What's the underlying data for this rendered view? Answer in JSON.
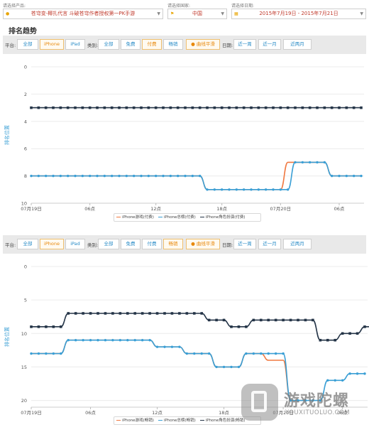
{
  "filters": {
    "product": {
      "label": "请选择产品:",
      "value": "苍穹变-椰扎代言 斗破苍穹作者授权第一PK手游"
    },
    "country": {
      "label": "请选择国家:",
      "value": "中国"
    },
    "date": {
      "label": "请选择日期:",
      "value": "2015年7月19日 - 2015年7月21日"
    }
  },
  "section_title": "排名趋势",
  "toolbar": {
    "platform_label": "平台:",
    "platforms": [
      "全部",
      "iPhone",
      "iPad"
    ],
    "category_label": "类别:",
    "categories": [
      "全部",
      "免费",
      "付费",
      "畅销"
    ],
    "smooth_label": "曲线平滑",
    "date_label": "日期:",
    "date_ranges": [
      "近一周",
      "近一月",
      "近两月"
    ]
  },
  "colors": {
    "game_series": "#f07840",
    "overall_series": "#3a9fd5",
    "role_series": "#243447",
    "active": "#e8890c",
    "link": "#2a8cc7"
  },
  "chart_data": [
    {
      "type": "line",
      "title": "",
      "ylabel": "排名位置",
      "ylim": [
        0,
        10
      ],
      "y_reversed": true,
      "yticks": [
        0,
        2,
        4,
        6,
        8,
        10
      ],
      "x_tick_labels": [
        "07月19日",
        "06点",
        "12点",
        "18点",
        "07月20日",
        "06点"
      ],
      "legend_position": "bottom",
      "active_platform": "iPhone",
      "active_category": "付费",
      "series": [
        {
          "name": "iPhone游戏(付费)",
          "points": [
            [
              0,
              8
            ],
            [
              1,
              8
            ],
            [
              2,
              8
            ],
            [
              3,
              8
            ],
            [
              4,
              8
            ],
            [
              5,
              8
            ],
            [
              6,
              8
            ],
            [
              7,
              8
            ],
            [
              8,
              8
            ],
            [
              9,
              8
            ],
            [
              10,
              8
            ],
            [
              11,
              8
            ],
            [
              12,
              8
            ],
            [
              13,
              8
            ],
            [
              14,
              8
            ],
            [
              15,
              8
            ],
            [
              16,
              8
            ],
            [
              17,
              8
            ],
            [
              18,
              8
            ],
            [
              19,
              8
            ],
            [
              20,
              8
            ],
            [
              21,
              8
            ],
            [
              22,
              8
            ],
            [
              23,
              8
            ],
            [
              24,
              9
            ],
            [
              25,
              9
            ],
            [
              26,
              9
            ],
            [
              27,
              9
            ],
            [
              28,
              9
            ],
            [
              29,
              9
            ],
            [
              30,
              9
            ],
            [
              31,
              9
            ],
            [
              32,
              9
            ],
            [
              33,
              9
            ],
            [
              34,
              9
            ],
            [
              35,
              7
            ],
            [
              36,
              7
            ],
            [
              37,
              7
            ],
            [
              38,
              7
            ],
            [
              39,
              7
            ],
            [
              40,
              7
            ],
            [
              41,
              8
            ],
            [
              42,
              8
            ],
            [
              43,
              8
            ],
            [
              44,
              8
            ],
            [
              45,
              8
            ]
          ]
        },
        {
          "name": "iPhone总榜(付费)",
          "points": [
            [
              0,
              8
            ],
            [
              1,
              8
            ],
            [
              2,
              8
            ],
            [
              3,
              8
            ],
            [
              4,
              8
            ],
            [
              5,
              8
            ],
            [
              6,
              8
            ],
            [
              7,
              8
            ],
            [
              8,
              8
            ],
            [
              9,
              8
            ],
            [
              10,
              8
            ],
            [
              11,
              8
            ],
            [
              12,
              8
            ],
            [
              13,
              8
            ],
            [
              14,
              8
            ],
            [
              15,
              8
            ],
            [
              16,
              8
            ],
            [
              17,
              8
            ],
            [
              18,
              8
            ],
            [
              19,
              8
            ],
            [
              20,
              8
            ],
            [
              21,
              8
            ],
            [
              22,
              8
            ],
            [
              23,
              8
            ],
            [
              24,
              9
            ],
            [
              25,
              9
            ],
            [
              26,
              9
            ],
            [
              27,
              9
            ],
            [
              28,
              9
            ],
            [
              29,
              9
            ],
            [
              30,
              9
            ],
            [
              31,
              9
            ],
            [
              32,
              9
            ],
            [
              33,
              9
            ],
            [
              34,
              9
            ],
            [
              35,
              9
            ],
            [
              36,
              7
            ],
            [
              37,
              7
            ],
            [
              38,
              7
            ],
            [
              39,
              7
            ],
            [
              40,
              7
            ],
            [
              41,
              8
            ],
            [
              42,
              8
            ],
            [
              43,
              8
            ],
            [
              44,
              8
            ],
            [
              45,
              8
            ]
          ]
        },
        {
          "name": "iPhone角色扮演(付费)",
          "points": [
            [
              0,
              3
            ],
            [
              1,
              3
            ],
            [
              2,
              3
            ],
            [
              3,
              3
            ],
            [
              4,
              3
            ],
            [
              5,
              3
            ],
            [
              6,
              3
            ],
            [
              7,
              3
            ],
            [
              8,
              3
            ],
            [
              9,
              3
            ],
            [
              10,
              3
            ],
            [
              11,
              3
            ],
            [
              12,
              3
            ],
            [
              13,
              3
            ],
            [
              14,
              3
            ],
            [
              15,
              3
            ],
            [
              16,
              3
            ],
            [
              17,
              3
            ],
            [
              18,
              3
            ],
            [
              19,
              3
            ],
            [
              20,
              3
            ],
            [
              21,
              3
            ],
            [
              22,
              3
            ],
            [
              23,
              3
            ],
            [
              24,
              3
            ],
            [
              25,
              3
            ],
            [
              26,
              3
            ],
            [
              27,
              3
            ],
            [
              28,
              3
            ],
            [
              29,
              3
            ],
            [
              30,
              3
            ],
            [
              31,
              3
            ],
            [
              32,
              3
            ],
            [
              33,
              3
            ],
            [
              34,
              3
            ],
            [
              35,
              3
            ],
            [
              36,
              3
            ],
            [
              37,
              3
            ],
            [
              38,
              3
            ],
            [
              39,
              3
            ],
            [
              40,
              3
            ],
            [
              41,
              3
            ],
            [
              42,
              3
            ],
            [
              43,
              3
            ],
            [
              44,
              3
            ],
            [
              45,
              3
            ]
          ]
        }
      ]
    },
    {
      "type": "line",
      "title": "",
      "ylabel": "排名位置",
      "ylim": [
        0,
        21
      ],
      "y_reversed": true,
      "yticks": [
        0,
        5,
        10,
        15,
        20
      ],
      "x_tick_labels": [
        "07月19日",
        "06点",
        "12点",
        "18点",
        "07月20日",
        "06点"
      ],
      "legend_position": "bottom",
      "active_platform": "iPhone",
      "active_category": "畅销",
      "series": [
        {
          "name": "iPhone游戏(畅销)",
          "points": [
            [
              0,
              13
            ],
            [
              1,
              13
            ],
            [
              2,
              13
            ],
            [
              3,
              13
            ],
            [
              4,
              13
            ],
            [
              5,
              11
            ],
            [
              6,
              11
            ],
            [
              7,
              11
            ],
            [
              8,
              11
            ],
            [
              9,
              11
            ],
            [
              10,
              11
            ],
            [
              11,
              11
            ],
            [
              12,
              11
            ],
            [
              13,
              11
            ],
            [
              14,
              11
            ],
            [
              15,
              11
            ],
            [
              16,
              11
            ],
            [
              17,
              12
            ],
            [
              18,
              12
            ],
            [
              19,
              12
            ],
            [
              20,
              12
            ],
            [
              21,
              13
            ],
            [
              22,
              13
            ],
            [
              23,
              13
            ],
            [
              24,
              13
            ],
            [
              25,
              15
            ],
            [
              26,
              15
            ],
            [
              27,
              15
            ],
            [
              28,
              15
            ],
            [
              29,
              13
            ],
            [
              30,
              13
            ],
            [
              31,
              13
            ],
            [
              32,
              14
            ],
            [
              33,
              14
            ],
            [
              34,
              14
            ],
            [
              35,
              20
            ],
            [
              36,
              20
            ],
            [
              37,
              20
            ]
          ]
        },
        {
          "name": "iPhone总榜(畅销)",
          "points": [
            [
              0,
              13
            ],
            [
              1,
              13
            ],
            [
              2,
              13
            ],
            [
              3,
              13
            ],
            [
              4,
              13
            ],
            [
              5,
              11
            ],
            [
              6,
              11
            ],
            [
              7,
              11
            ],
            [
              8,
              11
            ],
            [
              9,
              11
            ],
            [
              10,
              11
            ],
            [
              11,
              11
            ],
            [
              12,
              11
            ],
            [
              13,
              11
            ],
            [
              14,
              11
            ],
            [
              15,
              11
            ],
            [
              16,
              11
            ],
            [
              17,
              12
            ],
            [
              18,
              12
            ],
            [
              19,
              12
            ],
            [
              20,
              12
            ],
            [
              21,
              13
            ],
            [
              22,
              13
            ],
            [
              23,
              13
            ],
            [
              24,
              13
            ],
            [
              25,
              15
            ],
            [
              26,
              15
            ],
            [
              27,
              15
            ],
            [
              28,
              15
            ],
            [
              29,
              13
            ],
            [
              30,
              13
            ],
            [
              31,
              13
            ],
            [
              32,
              13
            ],
            [
              33,
              13
            ],
            [
              34,
              13
            ],
            [
              35,
              20
            ],
            [
              36,
              20
            ],
            [
              37,
              20
            ],
            [
              38,
              20
            ],
            [
              39,
              20
            ],
            [
              40,
              17
            ],
            [
              41,
              17
            ],
            [
              42,
              17
            ],
            [
              43,
              16
            ],
            [
              44,
              16
            ],
            [
              45,
              16
            ]
          ]
        },
        {
          "name": "iPhone角色扮演(畅销)",
          "points": [
            [
              0,
              9
            ],
            [
              1,
              9
            ],
            [
              2,
              9
            ],
            [
              3,
              9
            ],
            [
              4,
              9
            ],
            [
              5,
              7
            ],
            [
              6,
              7
            ],
            [
              7,
              7
            ],
            [
              8,
              7
            ],
            [
              9,
              7
            ],
            [
              10,
              7
            ],
            [
              11,
              7
            ],
            [
              12,
              7
            ],
            [
              13,
              7
            ],
            [
              14,
              7
            ],
            [
              15,
              7
            ],
            [
              16,
              7
            ],
            [
              17,
              7
            ],
            [
              18,
              7
            ],
            [
              19,
              7
            ],
            [
              20,
              7
            ],
            [
              21,
              7
            ],
            [
              22,
              7
            ],
            [
              23,
              7
            ],
            [
              24,
              8
            ],
            [
              25,
              8
            ],
            [
              26,
              8
            ],
            [
              27,
              9
            ],
            [
              28,
              9
            ],
            [
              29,
              9
            ],
            [
              30,
              8
            ],
            [
              31,
              8
            ],
            [
              32,
              8
            ],
            [
              33,
              8
            ],
            [
              34,
              8
            ],
            [
              35,
              8
            ],
            [
              36,
              8
            ],
            [
              37,
              8
            ],
            [
              38,
              8
            ],
            [
              39,
              11
            ],
            [
              40,
              11
            ],
            [
              41,
              11
            ],
            [
              42,
              10
            ],
            [
              43,
              10
            ],
            [
              44,
              10
            ],
            [
              45,
              9
            ],
            [
              46,
              9
            ]
          ]
        }
      ]
    }
  ],
  "watermark": {
    "cn": "游戏陀螺",
    "en": "YOUXITUOLUO.COM"
  }
}
